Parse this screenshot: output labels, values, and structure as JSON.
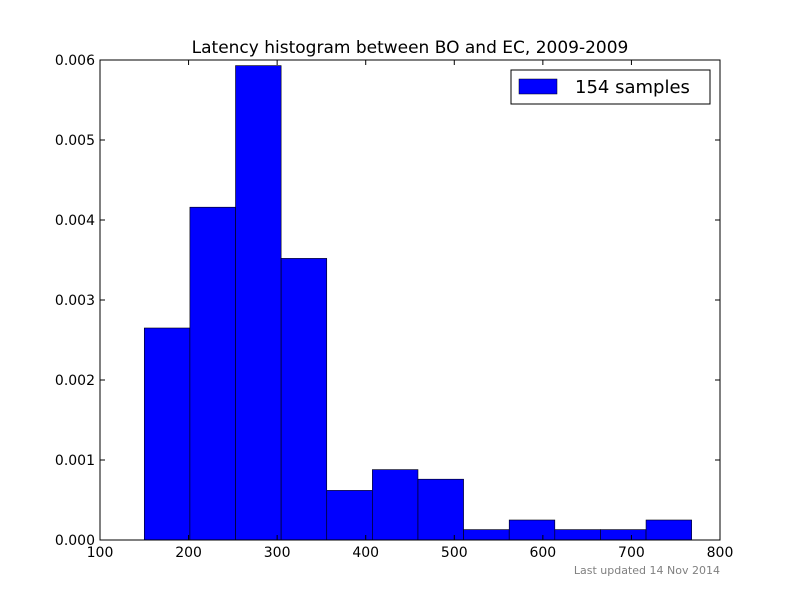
{
  "chart_data": {
    "type": "bar",
    "title": "Latency histogram between BO and EC, 2009-2009",
    "xlabel": "",
    "ylabel": "",
    "xlim": [
      100,
      800
    ],
    "ylim": [
      0,
      0.006
    ],
    "x_ticks": [
      "100",
      "200",
      "300",
      "400",
      "500",
      "600",
      "700",
      "800"
    ],
    "y_ticks": [
      "0.000",
      "0.001",
      "0.002",
      "0.003",
      "0.004",
      "0.005",
      "0.006"
    ],
    "grid": false,
    "legend_position": "top-right",
    "bin_edges": [
      150,
      201.5,
      253,
      304.5,
      356,
      407.5,
      459,
      510.5,
      562,
      613.5,
      665,
      716.5,
      768
    ],
    "series": [
      {
        "name": "154 samples",
        "color": "#0000ff",
        "values": [
          0.00265,
          0.00416,
          0.00593,
          0.00352,
          0.00062,
          0.00088,
          0.00076,
          0.00013,
          0.00025,
          0.00013,
          0.00013,
          0.00025
        ]
      }
    ]
  },
  "footnote": "Last updated 14 Nov 2014"
}
